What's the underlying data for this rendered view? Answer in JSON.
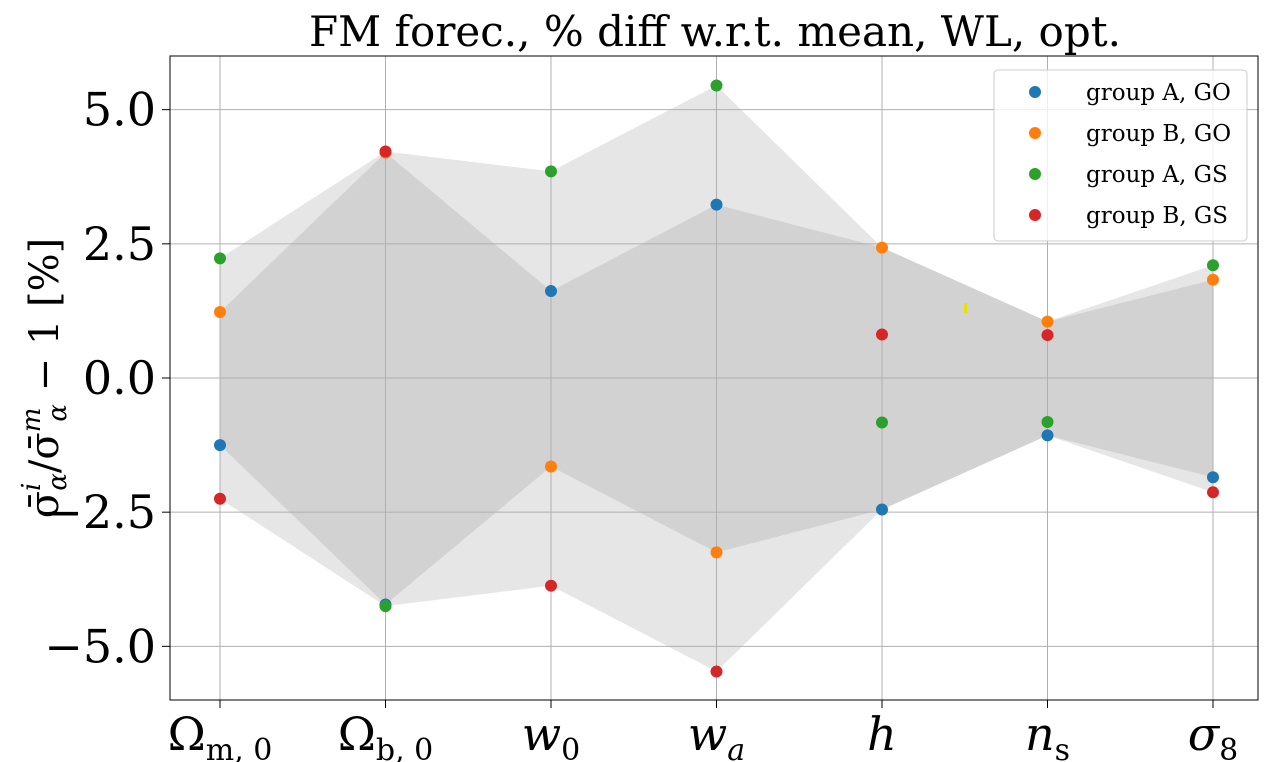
{
  "chart_data": {
    "type": "scatter",
    "title": "FM forec., % diff w.r.t. mean, WL, opt.",
    "ylabel": "σ̄ᵢα/σ̄ᵐα − 1 [%]",
    "ylabel_parts": {
      "sigma": "σ̄",
      "sup_i": "i",
      "sub_alpha": "α",
      "slash": "/",
      "sup_m": "m",
      "minus_one": " − 1 ",
      "unit": "[%]"
    },
    "xlabel": "",
    "categories": [
      {
        "main": "Ω",
        "sub": "m, 0",
        "italic_main": false,
        "italic_sub": false
      },
      {
        "main": "Ω",
        "sub": "b, 0",
        "italic_main": false,
        "italic_sub": false
      },
      {
        "main": "w",
        "sub": "0",
        "italic_main": true,
        "italic_sub": false
      },
      {
        "main": "w",
        "sub": "a",
        "italic_main": true,
        "italic_sub": true
      },
      {
        "main": "h",
        "sub": "",
        "italic_main": true,
        "italic_sub": false
      },
      {
        "main": "n",
        "sub": "s",
        "italic_main": true,
        "italic_sub": false
      },
      {
        "main": "σ",
        "sub": "8",
        "italic_main": true,
        "italic_sub": false
      }
    ],
    "ylim": [
      -6.0,
      6.0
    ],
    "yticks": [
      -5.0,
      -2.5,
      0.0,
      2.5,
      5.0
    ],
    "ytick_labels": [
      "−5.0",
      "−2.5",
      "0.0",
      "2.5",
      "5.0"
    ],
    "grid": true,
    "legend_position": "top-right",
    "series": [
      {
        "name": "group A, GO",
        "color": "#1f77b4",
        "values": [
          -1.25,
          -4.22,
          1.62,
          3.23,
          -2.45,
          -1.07,
          -1.85
        ]
      },
      {
        "name": "group B, GO",
        "color": "#ff7f0e",
        "values": [
          1.23,
          4.2,
          -1.65,
          -3.25,
          2.43,
          1.05,
          1.83
        ]
      },
      {
        "name": "group A, GS",
        "color": "#2ca02c",
        "values": [
          2.23,
          -4.25,
          3.85,
          5.45,
          -0.83,
          -0.82,
          2.1
        ]
      },
      {
        "name": "group B, GS",
        "color": "#d62728",
        "values": [
          -2.25,
          4.22,
          -3.87,
          -5.47,
          0.81,
          0.8,
          -2.13
        ]
      }
    ],
    "bands": {
      "outer_color": "#e6e6e6",
      "inner_color": "#d2d2d2"
    },
    "annotation_color": "#e8e000"
  }
}
